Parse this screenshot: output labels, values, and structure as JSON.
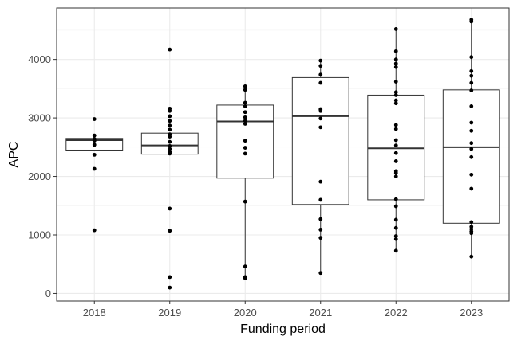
{
  "chart_data": {
    "type": "box",
    "xlabel": "Funding period",
    "ylabel": "APC",
    "categories": [
      "2018",
      "2019",
      "2020",
      "2021",
      "2022",
      "2023"
    ],
    "ylim": [
      -130,
      4880
    ],
    "yticks": [
      0,
      1000,
      2000,
      3000,
      4000
    ],
    "y_tick_labels": [
      "0",
      "1000",
      "2000",
      "3000",
      "4000"
    ],
    "grid": true,
    "boxes": [
      {
        "category": "2018",
        "q1": 2450,
        "median": 2620,
        "q3": 2650,
        "whisker_low": 2450,
        "whisker_high": 2650
      },
      {
        "category": "2019",
        "q1": 2380,
        "median": 2530,
        "q3": 2740,
        "whisker_low": 2380,
        "whisker_high": 2740
      },
      {
        "category": "2020",
        "q1": 1970,
        "median": 2940,
        "q3": 3220,
        "whisker_low": 260,
        "whisker_high": 3540
      },
      {
        "category": "2021",
        "q1": 1520,
        "median": 3030,
        "q3": 3690,
        "whisker_low": 350,
        "whisker_high": 3980
      },
      {
        "category": "2022",
        "q1": 1600,
        "median": 2480,
        "q3": 3390,
        "whisker_low": 730,
        "whisker_high": 4520
      },
      {
        "category": "2023",
        "q1": 1200,
        "median": 2500,
        "q3": 3480,
        "whisker_low": 620,
        "whisker_high": 4680
      }
    ],
    "points": [
      {
        "category": "2018",
        "values": [
          2980,
          2700,
          2640,
          2610,
          2540,
          2370,
          2130,
          1080
        ]
      },
      {
        "category": "2019",
        "values": [
          4170,
          3160,
          3120,
          3030,
          2950,
          2870,
          2800,
          2720,
          2680,
          2590,
          2520,
          2470,
          2420,
          2390,
          1450,
          1070,
          280,
          100
        ]
      },
      {
        "category": "2020",
        "values": [
          3540,
          3480,
          3260,
          3200,
          3100,
          3010,
          2950,
          2900,
          2610,
          2490,
          2390,
          1570,
          460,
          280,
          260
        ]
      },
      {
        "category": "2021",
        "values": [
          3980,
          3890,
          3740,
          3600,
          3150,
          3120,
          2990,
          2840,
          1910,
          1600,
          1270,
          1090,
          950,
          350
        ]
      },
      {
        "category": "2022",
        "values": [
          4520,
          4140,
          4000,
          3930,
          3870,
          3620,
          3440,
          3390,
          3300,
          3250,
          2880,
          2810,
          2620,
          2530,
          2400,
          2260,
          2090,
          2060,
          2000,
          1610,
          1490,
          1260,
          1120,
          980,
          930,
          730
        ]
      },
      {
        "category": "2023",
        "values": [
          4680,
          4650,
          4040,
          3800,
          3720,
          3600,
          3470,
          3200,
          2920,
          2780,
          2570,
          2470,
          2330,
          2030,
          1790,
          1220,
          1140,
          1100,
          1060,
          1030,
          630
        ]
      }
    ]
  }
}
